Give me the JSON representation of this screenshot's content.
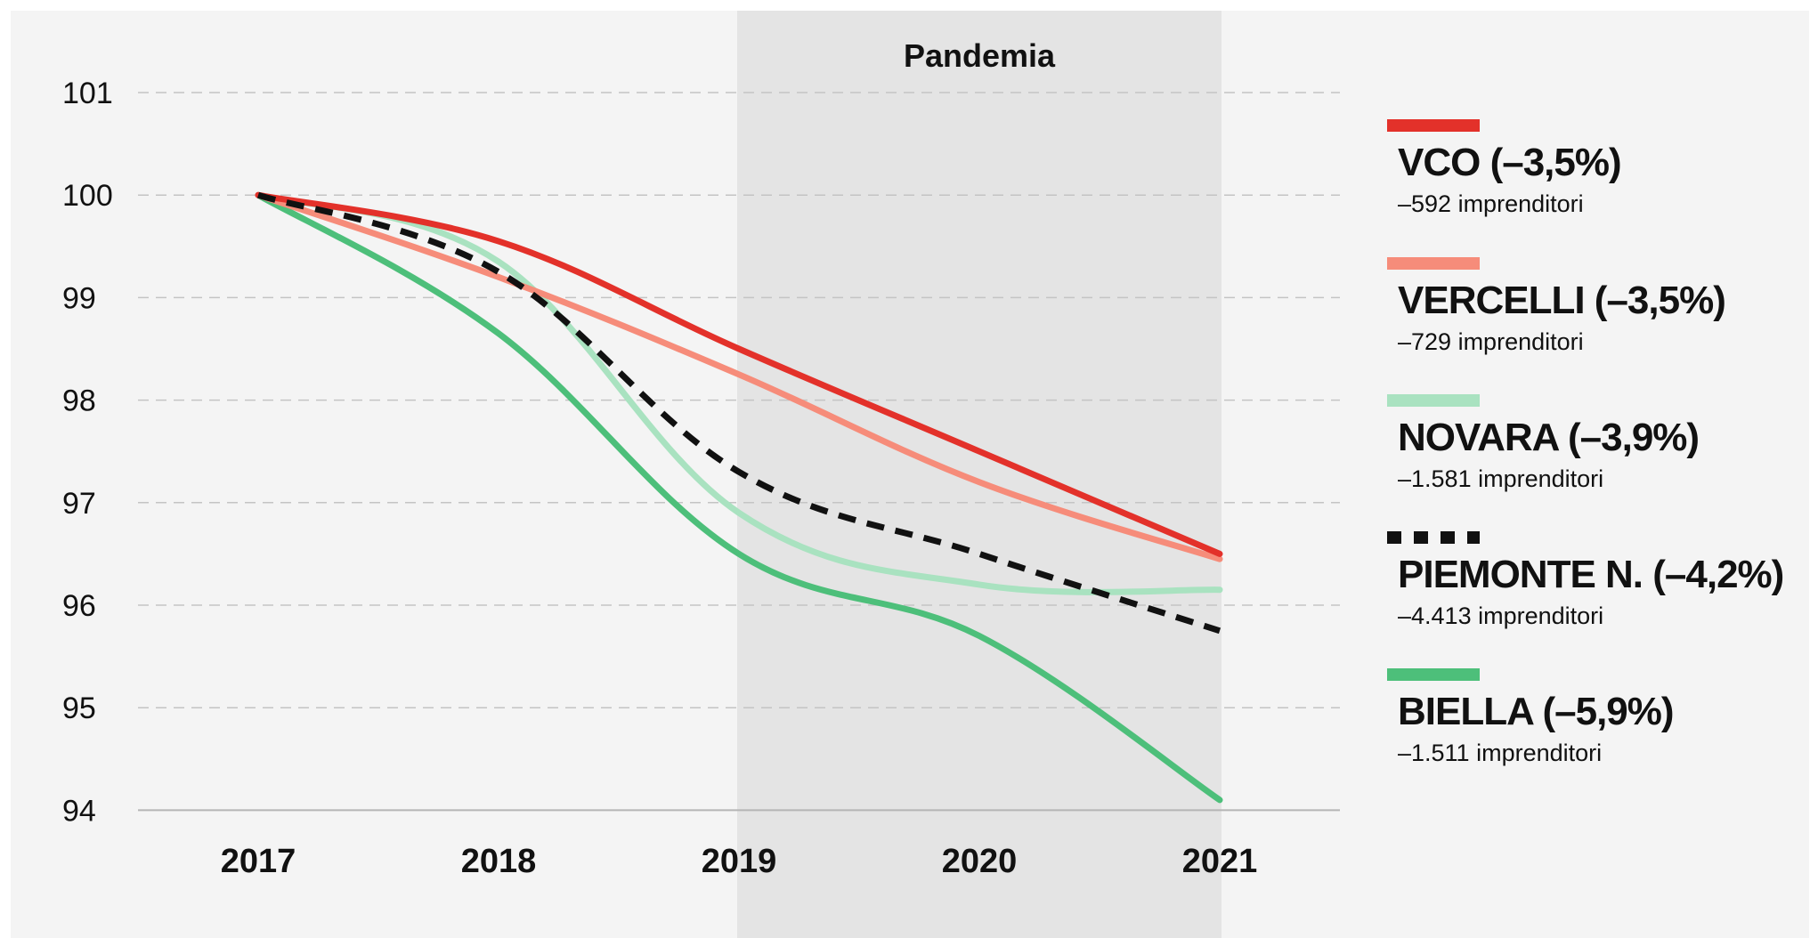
{
  "chart_data": {
    "type": "line",
    "x": [
      "2017",
      "2018",
      "2019",
      "2020",
      "2021"
    ],
    "ylim": [
      94,
      101
    ],
    "yticks": [
      94,
      95,
      96,
      97,
      98,
      99,
      100,
      101
    ],
    "grid": true,
    "shaded_band": {
      "label": "Pandemia",
      "x_from": "2019",
      "x_to": "2021"
    },
    "legend_position": "right",
    "series": [
      {
        "name": "VCO (–3,5%)",
        "detail": "–592 imprenditori",
        "color": "#e3312a",
        "style": "solid",
        "values": [
          100,
          99.55,
          98.5,
          97.5,
          96.5
        ]
      },
      {
        "name": "VERCELLI (–3,5%)",
        "detail": "–729 imprenditori",
        "color": "#f68c7a",
        "style": "solid",
        "values": [
          100,
          99.2,
          98.25,
          97.2,
          96.45
        ]
      },
      {
        "name": "NOVARA (–3,9%)",
        "detail": "–1.581 imprenditori",
        "color": "#a9e2c0",
        "style": "solid",
        "values": [
          100,
          99.35,
          96.9,
          96.2,
          96.15
        ]
      },
      {
        "name": "PIEMONTE N. (–4,2%)",
        "detail": "–4.413 imprenditori",
        "color": "#111111",
        "style": "dashed",
        "values": [
          100,
          99.25,
          97.3,
          96.5,
          95.75
        ]
      },
      {
        "name": "BIELLA (–5,9%)",
        "detail": "–1.511 imprenditori",
        "color": "#4dbf7a",
        "style": "solid",
        "values": [
          100,
          98.65,
          96.5,
          95.7,
          94.1
        ]
      }
    ]
  }
}
